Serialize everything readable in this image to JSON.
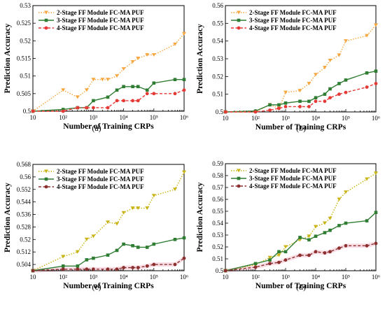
{
  "colors": {
    "orange": "#f5a742",
    "green": "#2e7d32",
    "red": "#e53935",
    "dark_red": "#8b2f2f",
    "band_pink": "#f6cfd8"
  },
  "chart_data": [
    {
      "type": "line",
      "panel": "(a)",
      "xlabel": "Number of Training CRPs",
      "ylabel": "Prediction Accuracy",
      "xscale": "log",
      "xlim": [
        10,
        1000000
      ],
      "ylim": [
        0.5,
        0.53
      ],
      "y_ticks": [
        "0.5",
        "0.505",
        "0.51",
        "0.515",
        "0.52",
        "0.525",
        "0.53"
      ],
      "x_ticks": [
        "10",
        "10²",
        "10³",
        "10⁴",
        "10⁵",
        "10⁶"
      ],
      "legend": "top-left",
      "series": [
        {
          "name": "2-Stage FF Module FC-MA PUF",
          "color": "#f5a742",
          "style": "dotted",
          "marker": "triangle-down",
          "x": [
            10,
            100,
            300,
            600,
            1000,
            2000,
            3000,
            6000,
            10000,
            20000,
            30000,
            60000,
            100000,
            500000,
            1000000
          ],
          "y": [
            0.5,
            0.506,
            0.504,
            0.506,
            0.509,
            0.509,
            0.509,
            0.51,
            0.512,
            0.514,
            0.515,
            0.516,
            0.516,
            0.519,
            0.522
          ]
        },
        {
          "name": "3-Stage FF Module FC-MA PUF",
          "color": "#2e7d32",
          "style": "solid",
          "marker": "square",
          "x": [
            10,
            100,
            300,
            600,
            1000,
            3000,
            6000,
            10000,
            20000,
            30000,
            60000,
            100000,
            500000,
            1000000
          ],
          "y": [
            0.5,
            0.5005,
            0.501,
            0.501,
            0.503,
            0.504,
            0.506,
            0.507,
            0.507,
            0.507,
            0.506,
            0.508,
            0.509,
            0.509
          ]
        },
        {
          "name": "4-Stage FF Module FC-MA PUF",
          "color": "#e53935",
          "style": "dashed",
          "marker": "circle",
          "x": [
            10,
            100,
            300,
            600,
            1000,
            3000,
            6000,
            10000,
            20000,
            30000,
            60000,
            100000,
            500000,
            1000000
          ],
          "y": [
            0.5,
            0.5,
            0.501,
            0.501,
            0.501,
            0.501,
            0.503,
            0.503,
            0.503,
            0.503,
            0.505,
            0.505,
            0.505,
            0.506
          ]
        }
      ]
    },
    {
      "type": "line",
      "panel": "(b)",
      "xlabel": "Number of Training CRPs",
      "ylabel": "Prediction Accuracy",
      "xscale": "log",
      "xlim": [
        10,
        1000000
      ],
      "ylim": [
        0.5,
        0.56
      ],
      "y_ticks": [
        "0.5",
        "0.51",
        "0.52",
        "0.53",
        "0.54",
        "0.55",
        "0.56"
      ],
      "x_ticks": [
        "10",
        "10²",
        "10³",
        "10⁴",
        "10⁵",
        "10⁶"
      ],
      "legend": "top-left",
      "series": [
        {
          "name": "2-Stage FF Module FC-MA PUF",
          "color": "#f5a742",
          "style": "dotted",
          "marker": "triangle-down",
          "x": [
            10,
            100,
            300,
            600,
            1000,
            3000,
            6000,
            10000,
            20000,
            30000,
            60000,
            100000,
            500000,
            1000000
          ],
          "y": [
            0.5,
            0.5,
            0.504,
            0.502,
            0.511,
            0.512,
            0.516,
            0.521,
            0.525,
            0.529,
            0.532,
            0.54,
            0.543,
            0.549
          ]
        },
        {
          "name": "3-Stage FF Module FC-MA PUF",
          "color": "#2e7d32",
          "style": "solid",
          "marker": "square",
          "x": [
            10,
            100,
            300,
            600,
            1000,
            3000,
            6000,
            10000,
            20000,
            30000,
            60000,
            100000,
            500000,
            1000000
          ],
          "y": [
            0.5,
            0.5005,
            0.504,
            0.504,
            0.505,
            0.506,
            0.506,
            0.508,
            0.51,
            0.513,
            0.516,
            0.518,
            0.522,
            0.523
          ]
        },
        {
          "name": "4-Stage FF Module FC-MA PUF",
          "color": "#e53935",
          "style": "dashed",
          "marker": "circle",
          "x": [
            10,
            100,
            300,
            600,
            1000,
            3000,
            6000,
            10000,
            20000,
            30000,
            60000,
            100000,
            500000,
            1000000
          ],
          "y": [
            0.5,
            0.5,
            0.501,
            0.502,
            0.503,
            0.503,
            0.503,
            0.506,
            0.506,
            0.508,
            0.51,
            0.511,
            0.514,
            0.516
          ]
        }
      ]
    },
    {
      "type": "line",
      "panel": "(c)",
      "xlabel": "Number of Training CRPs",
      "ylabel": "Prediction Accuracy",
      "xscale": "log",
      "xlim": [
        10,
        1000000
      ],
      "ylim": [
        0.5,
        0.568
      ],
      "y_ticks": [
        "0.504",
        "0.512",
        "0.52",
        "0.528",
        "0.536",
        "0.544",
        "0.552",
        "0.56",
        "0.568"
      ],
      "x_ticks": [
        "10",
        "10²",
        "10³",
        "10⁴",
        "10⁵",
        "10⁶"
      ],
      "legend": "top-left",
      "series": [
        {
          "name": "2-Stage FF Module FC-MA PUF",
          "color": "#c8b414",
          "style": "dotted",
          "marker": "triangle-down",
          "x": [
            10,
            100,
            300,
            600,
            1000,
            3000,
            6000,
            10000,
            20000,
            30000,
            60000,
            100000,
            500000,
            1000000
          ],
          "y": [
            0.5,
            0.509,
            0.512,
            0.52,
            0.522,
            0.531,
            0.53,
            0.537,
            0.54,
            0.54,
            0.54,
            0.548,
            0.552,
            0.563
          ]
        },
        {
          "name": "3-Stage FF Module FC-MA PUF",
          "color": "#2e7d32",
          "style": "solid",
          "marker": "square",
          "x": [
            10,
            100,
            300,
            600,
            1000,
            3000,
            6000,
            10000,
            20000,
            30000,
            60000,
            100000,
            500000,
            1000000
          ],
          "y": [
            0.5,
            0.503,
            0.503,
            0.507,
            0.508,
            0.51,
            0.513,
            0.517,
            0.516,
            0.515,
            0.515,
            0.517,
            0.52,
            0.521
          ]
        },
        {
          "name": "4-Stage FF Module FC-MA PUF",
          "color": "#8b2f2f",
          "style": "dashed",
          "marker": "circle",
          "x": [
            10,
            100,
            300,
            600,
            1000,
            3000,
            6000,
            10000,
            20000,
            30000,
            60000,
            100000,
            500000,
            1000000
          ],
          "y": [
            0.5,
            0.501,
            0.501,
            0.501,
            0.501,
            0.501,
            0.501,
            0.502,
            0.502,
            0.502,
            0.503,
            0.504,
            0.504,
            0.508
          ]
        }
      ]
    },
    {
      "type": "line",
      "panel": "(d)",
      "xlabel": "Number of Training CRPs",
      "ylabel": "Prediction Accuracy",
      "xscale": "log",
      "xlim": [
        10,
        1000000
      ],
      "ylim": [
        0.5,
        0.59
      ],
      "y_ticks": [
        "0.5",
        "0.51",
        "0.52",
        "0.53",
        "0.54",
        "0.55",
        "0.56",
        "0.57",
        "0.58",
        "0.59"
      ],
      "x_ticks": [
        "10",
        "10²",
        "10³",
        "10⁴",
        "10⁵",
        "10⁶"
      ],
      "legend": "top-left",
      "series": [
        {
          "name": "2-Stage FF Module FC-MA PUF",
          "color": "#c8b414",
          "style": "dotted",
          "marker": "triangle-down",
          "x": [
            10,
            100,
            300,
            600,
            1000,
            3000,
            6000,
            10000,
            20000,
            30000,
            60000,
            100000,
            500000,
            1000000
          ],
          "y": [
            0.5,
            0.505,
            0.511,
            0.513,
            0.52,
            0.526,
            0.529,
            0.537,
            0.54,
            0.544,
            0.56,
            0.566,
            0.577,
            0.582
          ]
        },
        {
          "name": "3-Stage FF Module FC-MA PUF",
          "color": "#2e7d32",
          "style": "solid",
          "marker": "square",
          "x": [
            10,
            100,
            300,
            600,
            1000,
            3000,
            6000,
            10000,
            20000,
            30000,
            60000,
            100000,
            500000,
            1000000
          ],
          "y": [
            0.5,
            0.506,
            0.509,
            0.516,
            0.516,
            0.528,
            0.526,
            0.529,
            0.532,
            0.534,
            0.538,
            0.54,
            0.542,
            0.549
          ]
        },
        {
          "name": "4-Stage FF Module FC-MA PUF",
          "color": "#8b2f2f",
          "style": "dashed",
          "marker": "circle",
          "x": [
            10,
            100,
            300,
            600,
            1000,
            3000,
            6000,
            10000,
            20000,
            30000,
            60000,
            100000,
            500000,
            1000000
          ],
          "y": [
            0.5,
            0.503,
            0.506,
            0.507,
            0.509,
            0.513,
            0.513,
            0.516,
            0.515,
            0.516,
            0.519,
            0.521,
            0.521,
            0.523
          ]
        }
      ]
    }
  ]
}
